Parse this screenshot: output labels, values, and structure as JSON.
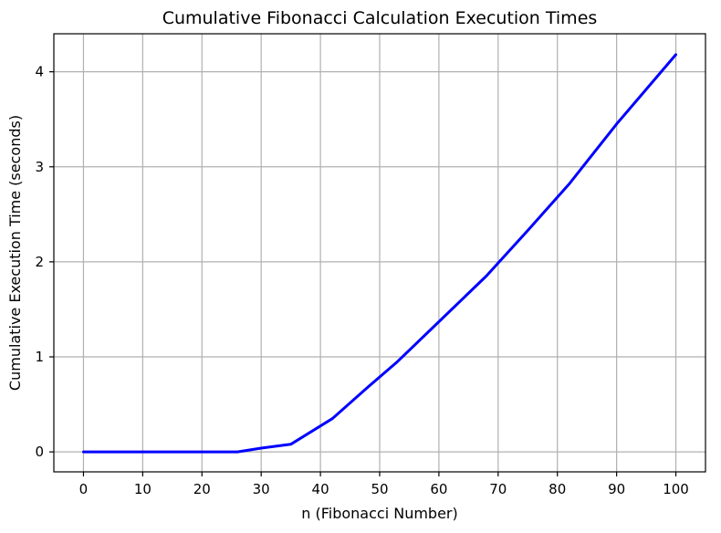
{
  "chart_data": {
    "type": "line",
    "title": "Cumulative Fibonacci Calculation Execution Times",
    "xlabel": "n (Fibonacci Number)",
    "ylabel": "Cumulative Execution Time (seconds)",
    "xlim": [
      -5,
      105
    ],
    "ylim": [
      -0.21,
      4.4
    ],
    "xticks": [
      0,
      10,
      20,
      30,
      40,
      50,
      60,
      70,
      80,
      90,
      100
    ],
    "yticks": [
      0,
      1,
      2,
      3,
      4
    ],
    "grid": true,
    "colors": {
      "line": "#0000ff",
      "grid": "#b0b0b0"
    },
    "series": [
      {
        "x": [
          0,
          10,
          20,
          26,
          30,
          35,
          42,
          48,
          53,
          60,
          68,
          75,
          82,
          90,
          100
        ],
        "y": [
          0,
          0,
          0,
          0,
          0.04,
          0.08,
          0.35,
          0.68,
          0.95,
          1.37,
          1.85,
          2.33,
          2.82,
          3.45,
          4.18
        ]
      }
    ]
  }
}
